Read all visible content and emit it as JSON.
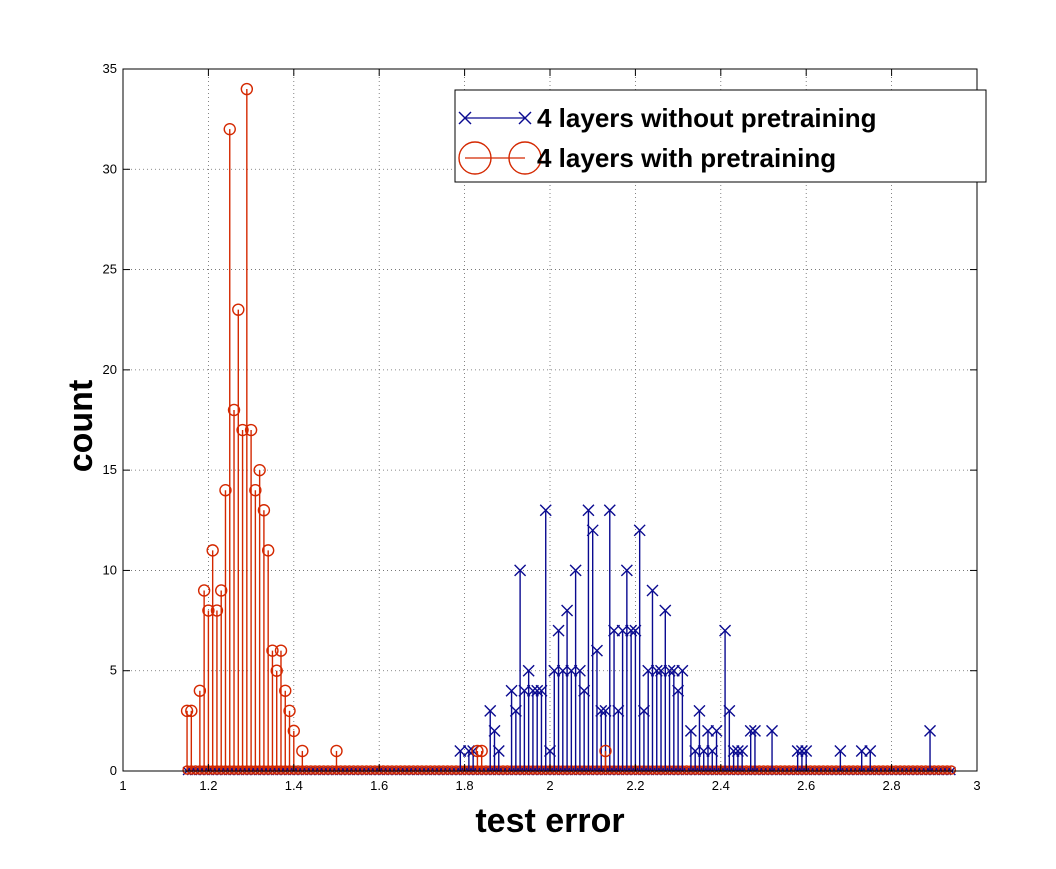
{
  "chart_data": {
    "type": "stem",
    "xlabel": "test error",
    "ylabel": "count",
    "xlim": [
      1,
      3
    ],
    "ylim": [
      0,
      35
    ],
    "x_ticks": [
      1,
      1.2,
      1.4,
      1.6,
      1.8,
      2,
      2.2,
      2.4,
      2.6,
      2.8,
      3
    ],
    "x_tick_labels": [
      "1",
      "1.2",
      "1.4",
      "1.6",
      "1.8",
      "2",
      "2.2",
      "2.4",
      "2.6",
      "2.8",
      "3"
    ],
    "y_ticks": [
      0,
      5,
      10,
      15,
      20,
      25,
      30,
      35
    ],
    "y_tick_labels": [
      "0",
      "5",
      "10",
      "15",
      "20",
      "25",
      "30",
      "35"
    ],
    "grid": true,
    "legend_position": "top-right",
    "series": [
      {
        "name": "4 layers without pretraining",
        "color": "#0a0a90",
        "marker": "x",
        "points": [
          [
            1.79,
            1
          ],
          [
            1.81,
            1
          ],
          [
            1.82,
            1
          ],
          [
            1.86,
            3
          ],
          [
            1.87,
            2
          ],
          [
            1.88,
            1
          ],
          [
            1.91,
            4
          ],
          [
            1.92,
            3
          ],
          [
            1.93,
            10
          ],
          [
            1.94,
            4
          ],
          [
            1.95,
            5
          ],
          [
            1.96,
            4
          ],
          [
            1.97,
            4
          ],
          [
            1.98,
            4
          ],
          [
            1.99,
            13
          ],
          [
            2.0,
            1
          ],
          [
            2.01,
            5
          ],
          [
            2.02,
            7
          ],
          [
            2.03,
            5
          ],
          [
            2.04,
            8
          ],
          [
            2.05,
            5
          ],
          [
            2.06,
            10
          ],
          [
            2.07,
            5
          ],
          [
            2.08,
            4
          ],
          [
            2.09,
            13
          ],
          [
            2.1,
            12
          ],
          [
            2.11,
            6
          ],
          [
            2.12,
            3
          ],
          [
            2.13,
            3
          ],
          [
            2.14,
            13
          ],
          [
            2.15,
            7
          ],
          [
            2.16,
            3
          ],
          [
            2.17,
            7
          ],
          [
            2.18,
            10
          ],
          [
            2.19,
            7
          ],
          [
            2.2,
            7
          ],
          [
            2.21,
            12
          ],
          [
            2.22,
            3
          ],
          [
            2.23,
            5
          ],
          [
            2.24,
            9
          ],
          [
            2.25,
            5
          ],
          [
            2.26,
            5
          ],
          [
            2.27,
            8
          ],
          [
            2.28,
            5
          ],
          [
            2.29,
            5
          ],
          [
            2.3,
            4
          ],
          [
            2.31,
            5
          ],
          [
            2.33,
            2
          ],
          [
            2.34,
            1
          ],
          [
            2.35,
            3
          ],
          [
            2.36,
            1
          ],
          [
            2.37,
            2
          ],
          [
            2.38,
            1
          ],
          [
            2.39,
            2
          ],
          [
            2.41,
            7
          ],
          [
            2.42,
            3
          ],
          [
            2.43,
            1
          ],
          [
            2.44,
            1
          ],
          [
            2.45,
            1
          ],
          [
            2.47,
            2
          ],
          [
            2.48,
            2
          ],
          [
            2.52,
            2
          ],
          [
            2.58,
            1
          ],
          [
            2.59,
            1
          ],
          [
            2.6,
            1
          ],
          [
            2.68,
            1
          ],
          [
            2.73,
            1
          ],
          [
            2.75,
            1
          ],
          [
            2.89,
            2
          ]
        ]
      },
      {
        "name": "4 layers with pretraining",
        "color": "#d42800",
        "marker": "o",
        "points": [
          [
            1.15,
            3
          ],
          [
            1.16,
            3
          ],
          [
            1.18,
            4
          ],
          [
            1.19,
            9
          ],
          [
            1.2,
            8
          ],
          [
            1.21,
            11
          ],
          [
            1.22,
            8
          ],
          [
            1.23,
            9
          ],
          [
            1.24,
            14
          ],
          [
            1.25,
            32
          ],
          [
            1.26,
            18
          ],
          [
            1.27,
            23
          ],
          [
            1.28,
            17
          ],
          [
            1.29,
            34
          ],
          [
            1.3,
            17
          ],
          [
            1.31,
            14
          ],
          [
            1.32,
            15
          ],
          [
            1.33,
            13
          ],
          [
            1.34,
            11
          ],
          [
            1.35,
            6
          ],
          [
            1.36,
            5
          ],
          [
            1.37,
            6
          ],
          [
            1.38,
            4
          ],
          [
            1.39,
            3
          ],
          [
            1.4,
            2
          ],
          [
            1.42,
            1
          ],
          [
            1.5,
            1
          ],
          [
            1.83,
            1
          ],
          [
            1.84,
            1
          ],
          [
            2.13,
            1
          ]
        ]
      }
    ]
  }
}
